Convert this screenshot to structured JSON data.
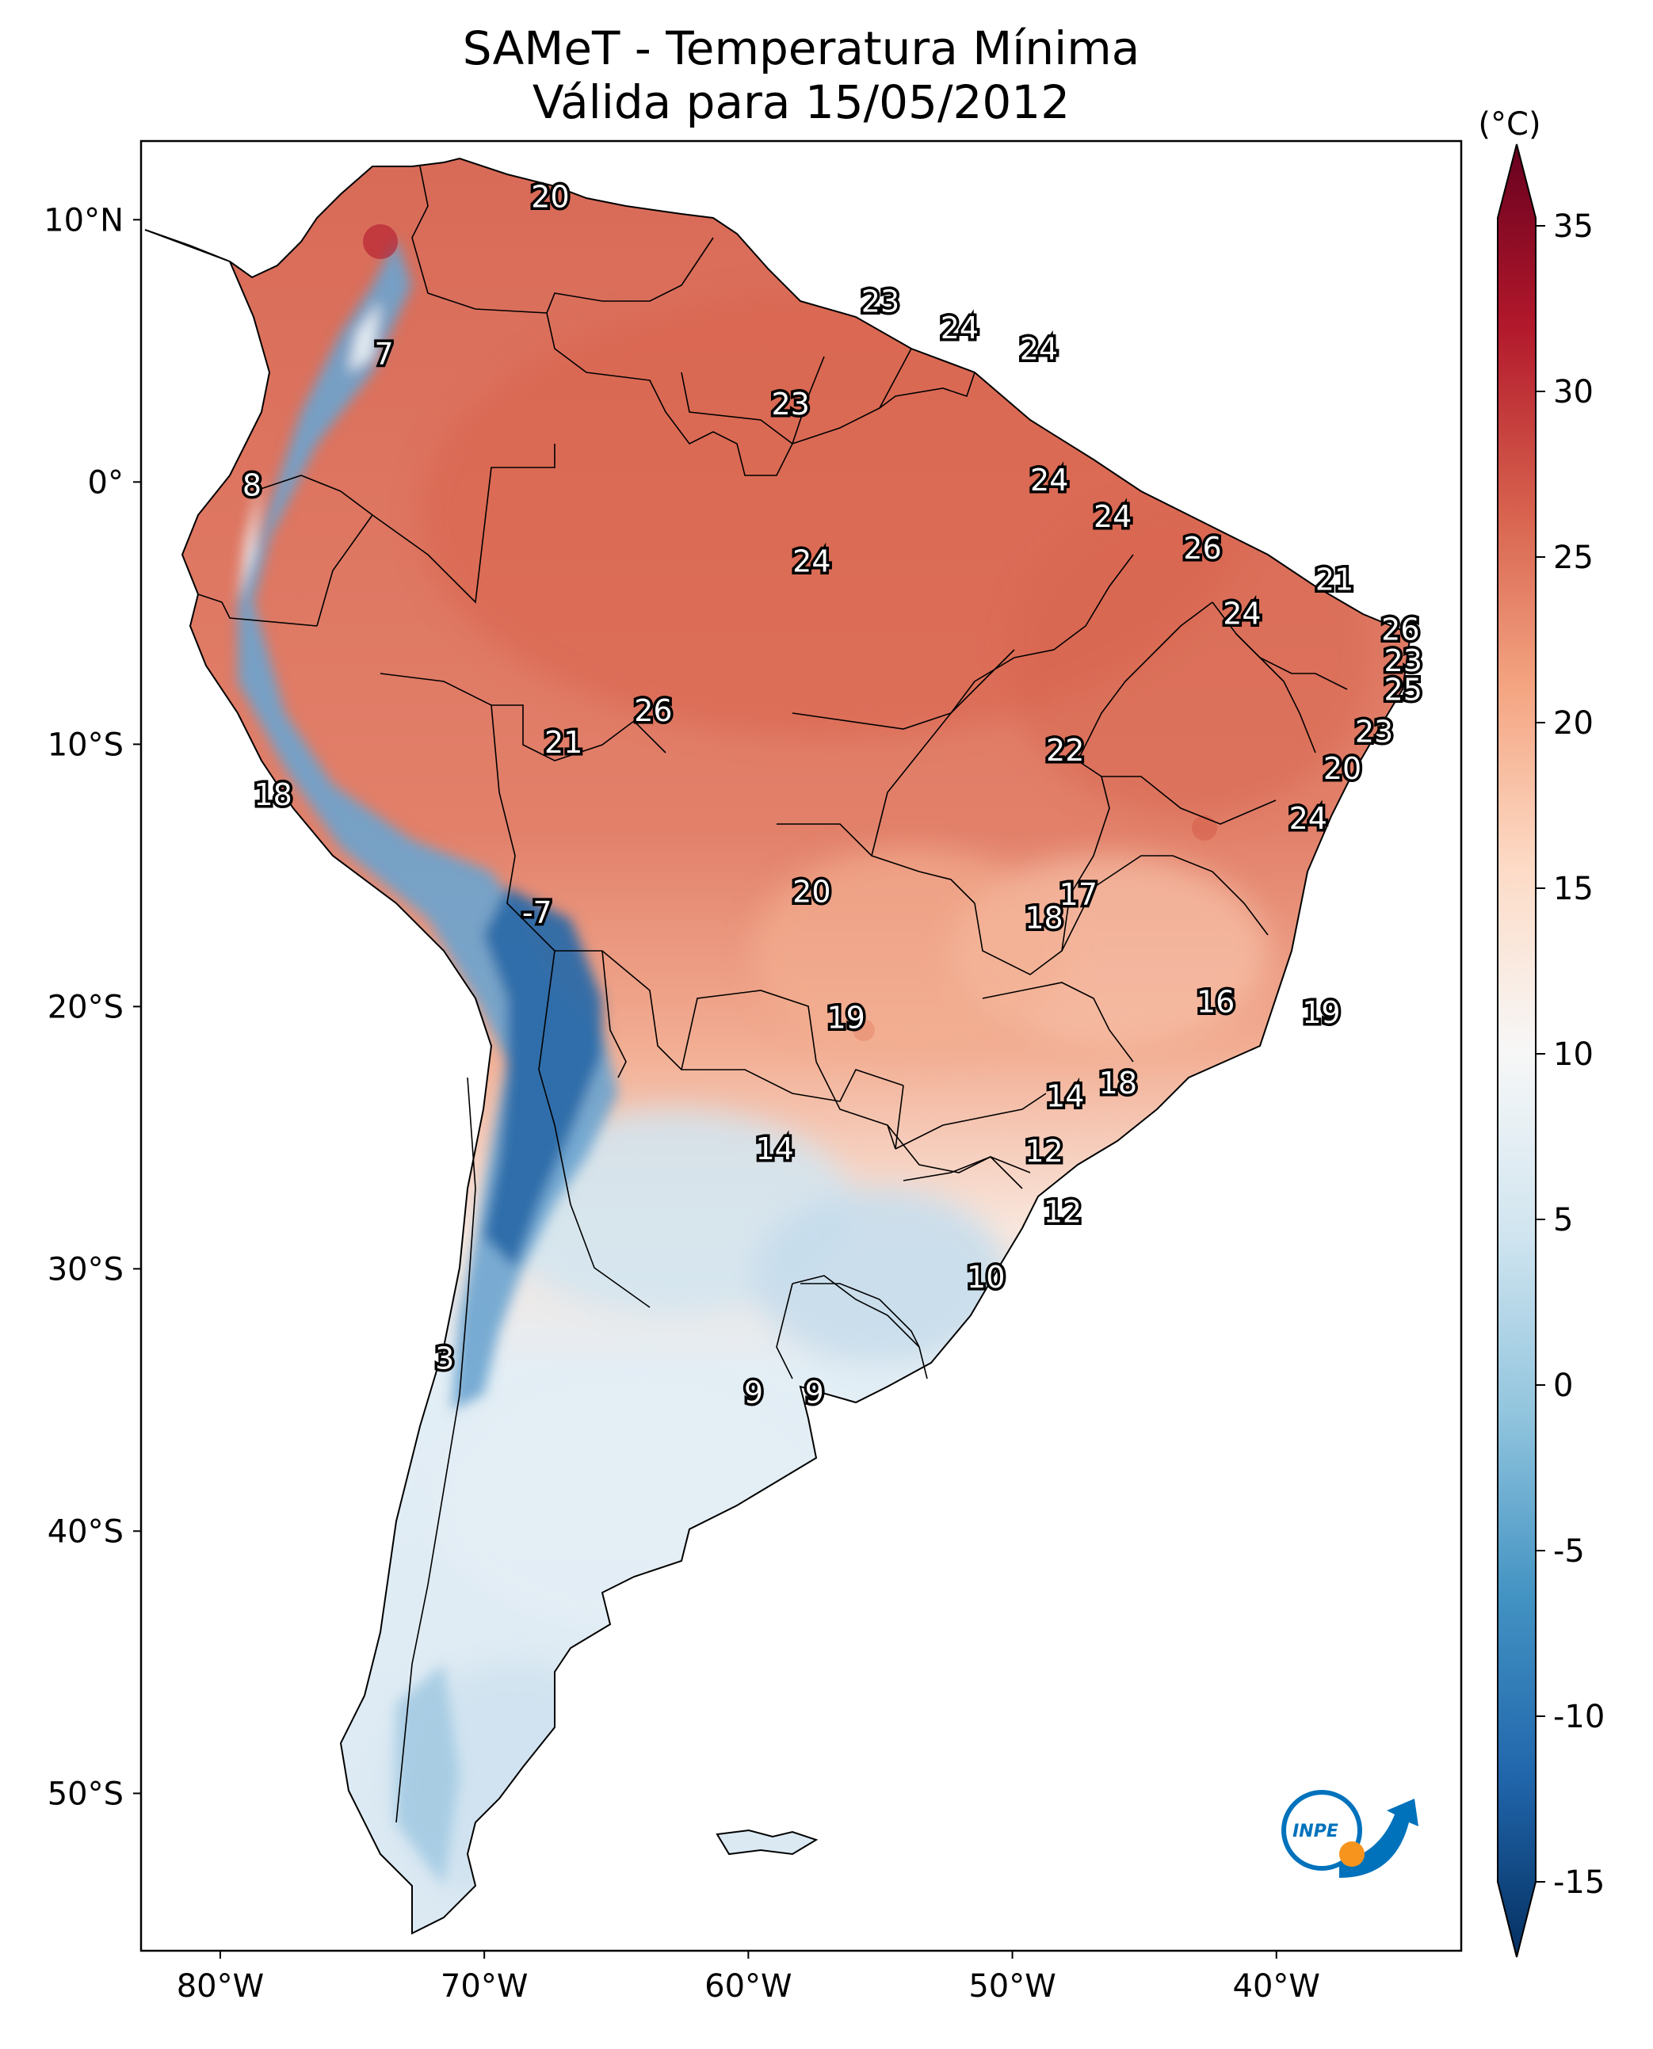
{
  "title": {
    "line1": "SAMeT - Temperatura Mínima",
    "line2": "Válida para 15/05/2012"
  },
  "lat_labels": [
    "10°N",
    "0°",
    "10°S",
    "20°S",
    "30°S",
    "40°S",
    "50°S"
  ],
  "lon_labels": [
    "80°W",
    "70°W",
    "60°W",
    "50°W",
    "40°W"
  ],
  "colorbar": {
    "unit": "(°C)",
    "ticks": [
      "35",
      "30",
      "25",
      "20",
      "15",
      "10",
      "5",
      "0",
      "-5",
      "-10",
      "-15"
    ],
    "min": -15,
    "max": 35,
    "extend": "both",
    "colormap": "RdBu_r",
    "colors": [
      "#053061",
      "#2166ac",
      "#4393c3",
      "#92c5de",
      "#d1e5f0",
      "#f7f7f7",
      "#fddbc7",
      "#f4a582",
      "#d6604d",
      "#b2182b",
      "#67001f"
    ]
  },
  "chart_data": {
    "type": "heatmap",
    "title": "SAMeT - Temperatura Mínima",
    "subtitle": "Válida para 15/05/2012",
    "extent": {
      "lon": [
        -83,
        -33
      ],
      "lat": [
        -56,
        13
      ]
    },
    "units": "°C",
    "point_labels": [
      {
        "lon": -67.5,
        "lat": 10.8,
        "value": 20
      },
      {
        "lon": -55.0,
        "lat": 6.8,
        "value": 23
      },
      {
        "lon": -52.0,
        "lat": 5.8,
        "value": 24
      },
      {
        "lon": -49.0,
        "lat": 5.0,
        "value": 24
      },
      {
        "lon": -73.8,
        "lat": 4.8,
        "value": 7
      },
      {
        "lon": -58.4,
        "lat": 2.9,
        "value": 23
      },
      {
        "lon": -78.8,
        "lat": -0.2,
        "value": 8
      },
      {
        "lon": -48.6,
        "lat": 0.0,
        "value": 24
      },
      {
        "lon": -46.2,
        "lat": -1.4,
        "value": 24
      },
      {
        "lon": -42.8,
        "lat": -2.6,
        "value": 26
      },
      {
        "lon": -37.8,
        "lat": -3.8,
        "value": 21
      },
      {
        "lon": -57.6,
        "lat": -3.1,
        "value": 24
      },
      {
        "lon": -41.3,
        "lat": -5.1,
        "value": 24
      },
      {
        "lon": -35.3,
        "lat": -5.7,
        "value": 26
      },
      {
        "lon": -35.2,
        "lat": -6.9,
        "value": 23
      },
      {
        "lon": -35.2,
        "lat": -8.0,
        "value": 25
      },
      {
        "lon": -63.6,
        "lat": -8.8,
        "value": 26
      },
      {
        "lon": -36.3,
        "lat": -9.6,
        "value": 23
      },
      {
        "lon": -67.0,
        "lat": -10.0,
        "value": 21
      },
      {
        "lon": -48.0,
        "lat": -10.3,
        "value": 22
      },
      {
        "lon": -37.5,
        "lat": -11.0,
        "value": 20
      },
      {
        "lon": -78.0,
        "lat": -12.0,
        "value": 18
      },
      {
        "lon": -38.8,
        "lat": -12.9,
        "value": 24
      },
      {
        "lon": -57.6,
        "lat": -15.7,
        "value": 20
      },
      {
        "lon": -47.5,
        "lat": -15.8,
        "value": 17
      },
      {
        "lon": -48.8,
        "lat": -16.7,
        "value": 18
      },
      {
        "lon": -68.0,
        "lat": -16.5,
        "value": -7
      },
      {
        "lon": -42.3,
        "lat": -19.9,
        "value": 16
      },
      {
        "lon": -38.3,
        "lat": -20.3,
        "value": 19
      },
      {
        "lon": -56.3,
        "lat": -20.5,
        "value": 19
      },
      {
        "lon": -46.0,
        "lat": -23.0,
        "value": 18
      },
      {
        "lon": -48.0,
        "lat": -23.5,
        "value": 14
      },
      {
        "lon": -59.0,
        "lat": -25.5,
        "value": 14
      },
      {
        "lon": -48.8,
        "lat": -25.6,
        "value": 12
      },
      {
        "lon": -48.1,
        "lat": -27.9,
        "value": 12
      },
      {
        "lon": -51.0,
        "lat": -30.4,
        "value": 10
      },
      {
        "lon": -71.5,
        "lat": -33.5,
        "value": 3
      },
      {
        "lon": -59.8,
        "lat": -34.8,
        "value": 9
      },
      {
        "lon": -57.5,
        "lat": -34.8,
        "value": 9
      }
    ]
  }
}
